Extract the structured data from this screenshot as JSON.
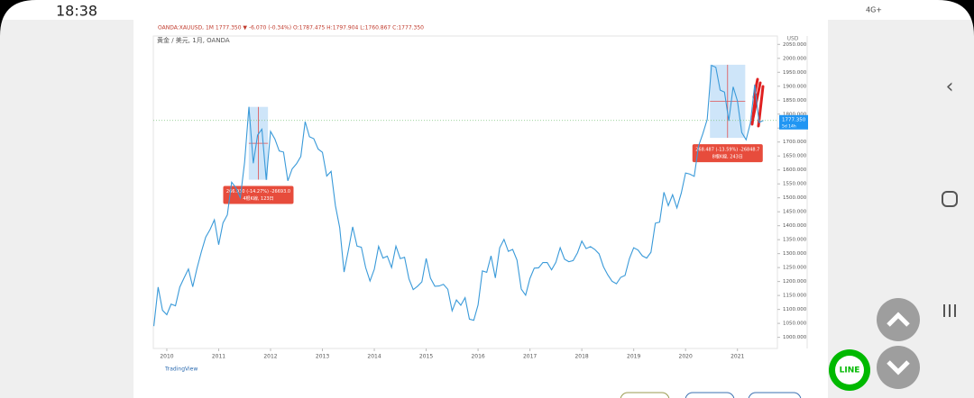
{
  "status_bar": {
    "time": "18:38",
    "network": "4G+"
  },
  "chart_data": {
    "type": "line",
    "header": "OANDA:XAUUSD, 1M 1777.350 ▼ -6.070 (-0.34%) O:1787.475 H:1797.904 L:1760.867 C:1777.350",
    "legend": "黄金 / 美元, 1月, OANDA",
    "currency": "USD",
    "brand": "TradingView",
    "x": [
      2009.75,
      2009.833,
      2009.917,
      2010,
      2010.083,
      2010.167,
      2010.25,
      2010.333,
      2010.417,
      2010.5,
      2010.583,
      2010.667,
      2010.75,
      2010.833,
      2010.917,
      2011,
      2011.083,
      2011.167,
      2011.25,
      2011.333,
      2011.417,
      2011.5,
      2011.583,
      2011.667,
      2011.75,
      2011.833,
      2011.917,
      2012,
      2012.083,
      2012.167,
      2012.25,
      2012.333,
      2012.417,
      2012.5,
      2012.583,
      2012.667,
      2012.75,
      2012.833,
      2012.917,
      2013,
      2013.083,
      2013.167,
      2013.25,
      2013.333,
      2013.417,
      2013.5,
      2013.583,
      2013.667,
      2013.75,
      2013.833,
      2013.917,
      2014,
      2014.083,
      2014.167,
      2014.25,
      2014.333,
      2014.417,
      2014.5,
      2014.583,
      2014.667,
      2014.75,
      2014.833,
      2014.917,
      2015,
      2015.083,
      2015.167,
      2015.25,
      2015.333,
      2015.417,
      2015.5,
      2015.583,
      2015.667,
      2015.75,
      2015.833,
      2015.917,
      2016,
      2016.083,
      2016.167,
      2016.25,
      2016.333,
      2016.417,
      2016.5,
      2016.583,
      2016.667,
      2016.75,
      2016.833,
      2016.917,
      2017,
      2017.083,
      2017.167,
      2017.25,
      2017.333,
      2017.417,
      2017.5,
      2017.583,
      2017.667,
      2017.75,
      2017.833,
      2017.917,
      2018,
      2018.083,
      2018.167,
      2018.25,
      2018.333,
      2018.417,
      2018.5,
      2018.583,
      2018.667,
      2018.75,
      2018.833,
      2018.917,
      2019,
      2019.083,
      2019.167,
      2019.25,
      2019.333,
      2019.417,
      2019.5,
      2019.583,
      2019.667,
      2019.75,
      2019.833,
      2019.917,
      2020,
      2020.083,
      2020.167,
      2020.25,
      2020.333,
      2020.417,
      2020.5,
      2020.583,
      2020.667,
      2020.75,
      2020.833,
      2020.917,
      2021,
      2021.083,
      2021.167,
      2021.25,
      2021.333,
      2021.417,
      2021.5
    ],
    "series": [
      {
        "name": "XAUUSD",
        "color": "#3a9ad9",
        "values": [
          1040,
          1180,
          1097,
          1081,
          1119,
          1113,
          1180,
          1213,
          1245,
          1181,
          1248,
          1307,
          1359,
          1386,
          1421,
          1332,
          1410,
          1439,
          1556,
          1536,
          1500,
          1628,
          1826,
          1624,
          1725,
          1746,
          1564,
          1738,
          1711,
          1668,
          1664,
          1561,
          1604,
          1622,
          1648,
          1773,
          1719,
          1712,
          1675,
          1663,
          1578,
          1595,
          1472,
          1393,
          1234,
          1312,
          1396,
          1327,
          1323,
          1250,
          1202,
          1244,
          1326,
          1284,
          1291,
          1250,
          1327,
          1282,
          1287,
          1210,
          1171,
          1183,
          1199,
          1283,
          1212,
          1183,
          1184,
          1190,
          1172,
          1095,
          1134,
          1115,
          1142,
          1065,
          1061,
          1116,
          1238,
          1233,
          1292,
          1213,
          1321,
          1351,
          1308,
          1315,
          1277,
          1173,
          1151,
          1211,
          1248,
          1249,
          1268,
          1268,
          1242,
          1269,
          1321,
          1280,
          1271,
          1275,
          1303,
          1345,
          1318,
          1325,
          1315,
          1299,
          1253,
          1224,
          1201,
          1192,
          1215,
          1222,
          1282,
          1321,
          1313,
          1292,
          1284,
          1305,
          1409,
          1413,
          1520,
          1472,
          1511,
          1464,
          1517,
          1589,
          1585,
          1577,
          1686,
          1730,
          1781,
          1975,
          1968,
          1886,
          1879,
          1776,
          1898,
          1847,
          1734,
          1708,
          1769,
          1906,
          1770,
          1777.35
        ]
      }
    ],
    "xlim": [
      2009.74,
      2021.77
    ],
    "xticks": [
      2010,
      2011,
      2012,
      2013,
      2014,
      2015,
      2016,
      2017,
      2018,
      2019,
      2020,
      2021
    ],
    "ylim": [
      960,
      2080
    ],
    "yticks": [
      {
        "value": 1000,
        "label": "1000.000"
      },
      {
        "value": 1050,
        "label": "1050.000"
      },
      {
        "value": 1100,
        "label": "1100.000"
      },
      {
        "value": 1150,
        "label": "1150.000"
      },
      {
        "value": 1200,
        "label": "1200.000"
      },
      {
        "value": 1250,
        "label": "1250.000"
      },
      {
        "value": 1300,
        "label": "1300.000"
      },
      {
        "value": 1350,
        "label": "1350.000"
      },
      {
        "value": 1400,
        "label": "1400.000"
      },
      {
        "value": 1450,
        "label": "1450.000"
      },
      {
        "value": 1500,
        "label": "1500.000"
      },
      {
        "value": 1550,
        "label": "1550.000"
      },
      {
        "value": 1600,
        "label": "1600.000"
      },
      {
        "value": 1650,
        "label": "1650.000"
      },
      {
        "value": 1700,
        "label": "1700.000"
      },
      {
        "value": 1750,
        "label": "1750.000"
      },
      {
        "value": 1800,
        "label": "1800.000"
      },
      {
        "value": 1850,
        "label": "1850.000"
      },
      {
        "value": 1900,
        "label": "1900.000"
      },
      {
        "value": 1950,
        "label": "1950.000"
      },
      {
        "value": 2000,
        "label": "2000.000"
      },
      {
        "value": 2050,
        "label": "2050.000"
      }
    ],
    "last_price": {
      "value": 1777.35,
      "label": "1777.350",
      "countdown": "5d 14h"
    },
    "ranges": [
      {
        "x": [
          2011.58,
          2011.95
        ],
        "y": [
          1565,
          1826
        ],
        "label": "266.930 (-14.27%) -26693.0",
        "sub": "4根K線, 123日"
      },
      {
        "x": [
          2020.47,
          2021.15
        ],
        "y": [
          1715,
          1977
        ],
        "label": "268.487 (-13.59%) -26848.7",
        "sub": "8根K線, 243日"
      }
    ]
  },
  "buttons": {
    "line": "LINE"
  }
}
